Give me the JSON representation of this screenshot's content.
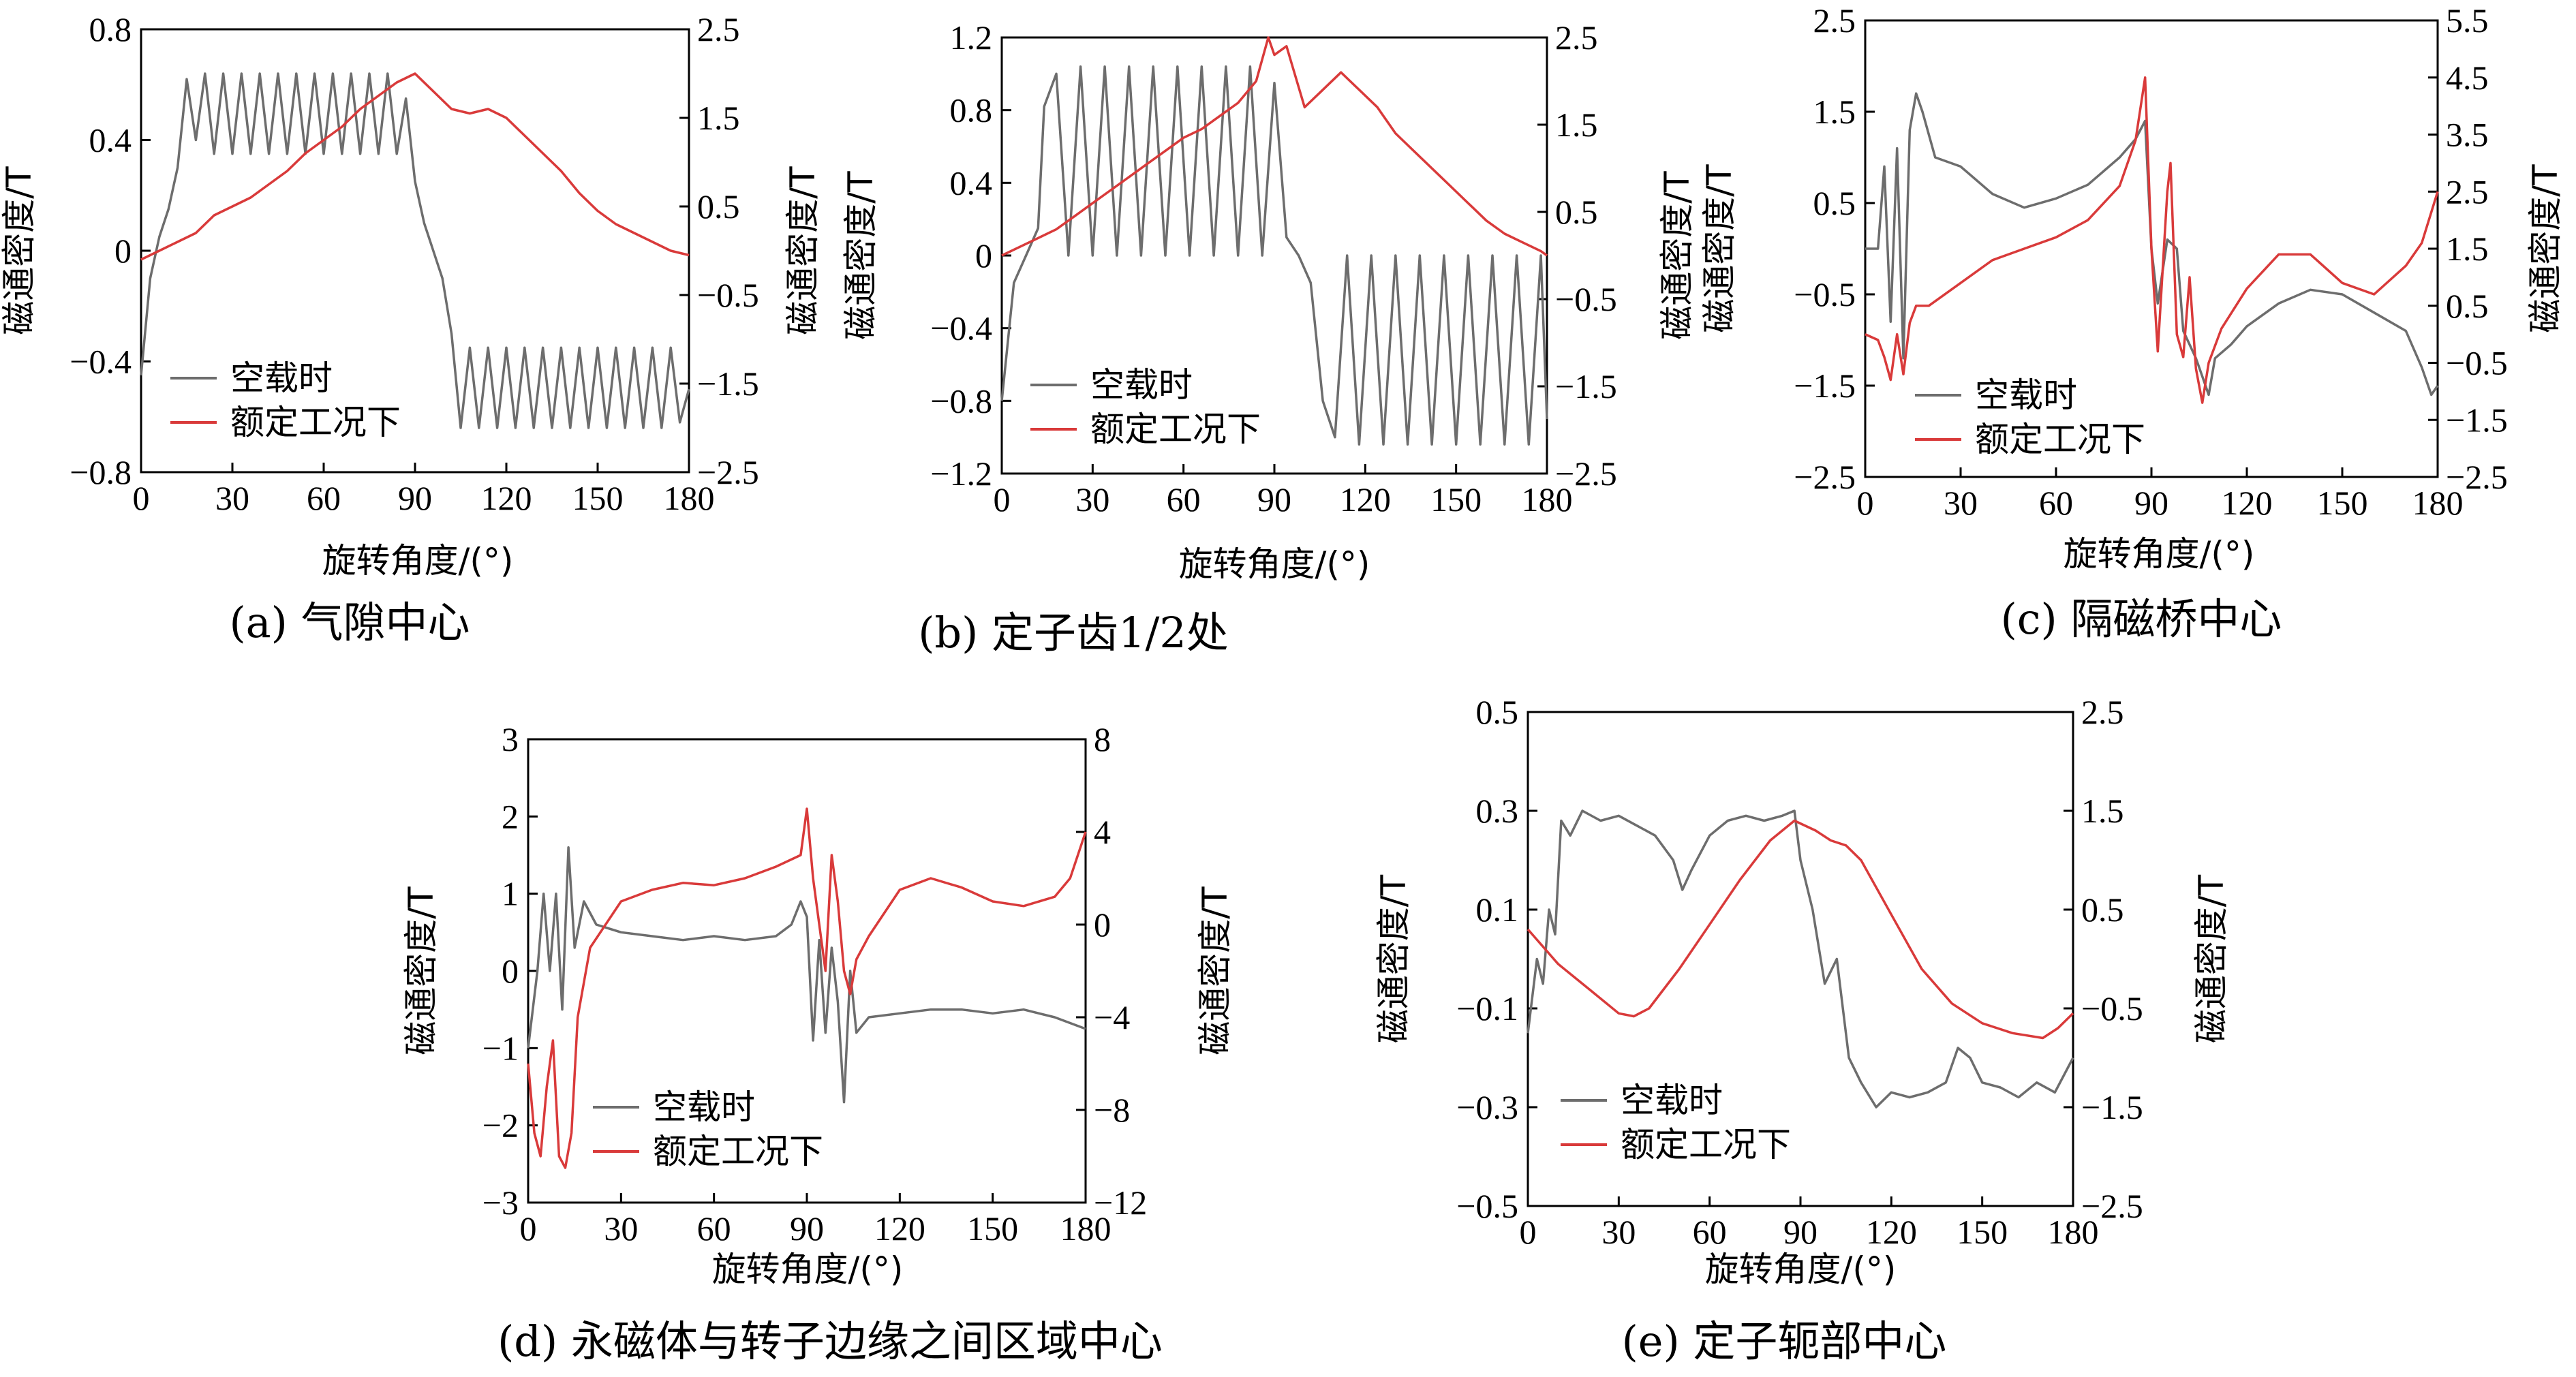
{
  "colors": {
    "no_load": "#6d6d6d",
    "rated": "#d93a3a",
    "axis": "#000000"
  },
  "legend": {
    "no_load": "空载时",
    "rated": "额定工况下"
  },
  "chart_data": [
    {
      "type": "line",
      "caption": "(a)  气隙中心",
      "xlabel": "旋转角度/(°)",
      "ylabel_left": "磁通密度/T",
      "ylabel_right": "磁通密度/T",
      "xlim": [
        0,
        180
      ],
      "xticks": [
        "0",
        "30",
        "60",
        "90",
        "120",
        "150",
        "180"
      ],
      "ylim_left": [
        -0.8,
        0.8
      ],
      "yticks_left": [
        "−0.8",
        "−0.4",
        "0",
        "0.4",
        "0.8"
      ],
      "ylim_right": [
        -2.5,
        2.5
      ],
      "yticks_right": [
        "−2.5",
        "−1.5",
        "−0.5",
        "0.5",
        "1.5",
        "2.5"
      ],
      "series": [
        {
          "name": "空载时",
          "axis": "left",
          "color": "#6d6d6d",
          "x": [
            0,
            3,
            6,
            9,
            12,
            15,
            18,
            21,
            24,
            27,
            30,
            33,
            36,
            39,
            42,
            45,
            48,
            51,
            54,
            57,
            60,
            63,
            66,
            69,
            72,
            75,
            78,
            81,
            84,
            87,
            90,
            93,
            96,
            99,
            102,
            105,
            108,
            111,
            114,
            117,
            120,
            123,
            126,
            129,
            132,
            135,
            138,
            141,
            144,
            147,
            150,
            153,
            156,
            159,
            162,
            165,
            168,
            171,
            174,
            177,
            180
          ],
          "y": [
            -0.45,
            -0.1,
            0.05,
            0.15,
            0.3,
            0.62,
            0.4,
            0.64,
            0.35,
            0.64,
            0.35,
            0.64,
            0.35,
            0.64,
            0.35,
            0.64,
            0.35,
            0.64,
            0.35,
            0.64,
            0.35,
            0.64,
            0.35,
            0.64,
            0.35,
            0.64,
            0.35,
            0.64,
            0.35,
            0.55,
            0.25,
            0.1,
            0.0,
            -0.1,
            -0.3,
            -0.64,
            -0.35,
            -0.64,
            -0.35,
            -0.64,
            -0.35,
            -0.64,
            -0.35,
            -0.64,
            -0.35,
            -0.64,
            -0.35,
            -0.64,
            -0.35,
            -0.64,
            -0.35,
            -0.64,
            -0.35,
            -0.64,
            -0.35,
            -0.64,
            -0.35,
            -0.64,
            -0.35,
            -0.62,
            -0.5
          ]
        },
        {
          "name": "额定工况下",
          "axis": "right",
          "color": "#d93a3a",
          "x": [
            0,
            6,
            12,
            18,
            24,
            30,
            36,
            42,
            48,
            54,
            60,
            66,
            72,
            78,
            84,
            90,
            96,
            102,
            108,
            114,
            120,
            126,
            132,
            138,
            144,
            150,
            156,
            162,
            168,
            174,
            180
          ],
          "y": [
            -0.1,
            0.0,
            0.1,
            0.2,
            0.4,
            0.5,
            0.6,
            0.75,
            0.9,
            1.1,
            1.25,
            1.4,
            1.6,
            1.75,
            1.9,
            2.0,
            1.8,
            1.6,
            1.55,
            1.6,
            1.5,
            1.3,
            1.1,
            0.9,
            0.65,
            0.45,
            0.3,
            0.2,
            0.1,
            0.0,
            -0.05
          ]
        }
      ]
    },
    {
      "type": "line",
      "caption": "(b)  定子齿1/2处",
      "xlabel": "旋转角度/(°)",
      "ylabel_left": "磁通密度/T",
      "ylabel_right": "磁通密度/T",
      "xlim": [
        0,
        180
      ],
      "xticks": [
        "0",
        "30",
        "60",
        "90",
        "120",
        "150",
        "180"
      ],
      "ylim_left": [
        -1.2,
        1.2
      ],
      "yticks_left": [
        "−1.2",
        "−0.8",
        "−0.4",
        "0",
        "0.4",
        "0.8",
        "1.2"
      ],
      "ylim_right": [
        -2.5,
        2.5
      ],
      "yticks_right": [
        "−2.5",
        "−1.5",
        "−0.5",
        "0.5",
        "1.5",
        "2.5"
      ],
      "series": [
        {
          "name": "空载时",
          "axis": "left",
          "color": "#6d6d6d",
          "x": [
            0,
            4,
            8,
            12,
            14,
            18,
            22,
            26,
            30,
            34,
            38,
            42,
            46,
            50,
            54,
            58,
            62,
            66,
            70,
            74,
            78,
            82,
            86,
            90,
            94,
            98,
            102,
            106,
            110,
            114,
            118,
            122,
            126,
            130,
            134,
            138,
            142,
            146,
            150,
            154,
            158,
            162,
            166,
            170,
            174,
            178,
            180
          ],
          "y": [
            -0.8,
            -0.15,
            0.0,
            0.15,
            0.82,
            1.0,
            0.0,
            1.04,
            0.0,
            1.04,
            0.0,
            1.04,
            0.0,
            1.04,
            0.0,
            1.04,
            0.0,
            1.04,
            0.0,
            1.04,
            0.0,
            1.04,
            0.0,
            0.95,
            0.1,
            0.0,
            -0.15,
            -0.8,
            -1.0,
            0.0,
            -1.04,
            0.0,
            -1.04,
            0.0,
            -1.04,
            0.0,
            -1.04,
            0.0,
            -1.04,
            0.0,
            -1.04,
            0.0,
            -1.04,
            0.0,
            -1.04,
            0.0,
            -0.9
          ]
        },
        {
          "name": "额定工况下",
          "axis": "right",
          "color": "#d93a3a",
          "x": [
            0,
            6,
            12,
            18,
            24,
            30,
            36,
            42,
            48,
            54,
            60,
            66,
            72,
            78,
            84,
            88,
            90,
            94,
            100,
            106,
            112,
            118,
            124,
            130,
            136,
            142,
            148,
            154,
            160,
            166,
            172,
            178,
            180
          ],
          "y": [
            0.0,
            0.1,
            0.2,
            0.3,
            0.45,
            0.6,
            0.75,
            0.9,
            1.05,
            1.2,
            1.35,
            1.45,
            1.6,
            1.75,
            2.0,
            2.5,
            2.3,
            2.4,
            1.7,
            1.9,
            2.1,
            1.9,
            1.7,
            1.4,
            1.2,
            1.0,
            0.8,
            0.6,
            0.4,
            0.25,
            0.15,
            0.05,
            0.0
          ]
        }
      ]
    },
    {
      "type": "line",
      "caption": "(c)  隔磁桥中心",
      "xlabel": "旋转角度/(°)",
      "ylabel_left": "磁通密度/T",
      "ylabel_right": "磁通密度/T",
      "xlim": [
        0,
        180
      ],
      "xticks": [
        "0",
        "30",
        "60",
        "90",
        "120",
        "150",
        "180"
      ],
      "ylim_left": [
        -2.5,
        2.5
      ],
      "yticks_left": [
        "−2.5",
        "−1.5",
        "−0.5",
        "0.5",
        "1.5",
        "2.5"
      ],
      "ylim_right": [
        -2.5,
        5.5
      ],
      "yticks_right": [
        "−2.5",
        "−1.5",
        "−0.5",
        "0.5",
        "1.5",
        "2.5",
        "3.5",
        "4.5",
        "5.5"
      ],
      "series": [
        {
          "name": "空载时",
          "axis": "left",
          "color": "#6d6d6d",
          "x": [
            0,
            4,
            6,
            8,
            10,
            12,
            14,
            16,
            18,
            22,
            30,
            40,
            50,
            60,
            70,
            80,
            85,
            88,
            90,
            92,
            95,
            98,
            100,
            104,
            106,
            108,
            110,
            115,
            120,
            130,
            140,
            150,
            160,
            170,
            175,
            178,
            180
          ],
          "y": [
            0.0,
            0.0,
            0.9,
            -0.8,
            1.1,
            -1.2,
            1.3,
            1.7,
            1.5,
            1.0,
            0.9,
            0.6,
            0.45,
            0.55,
            0.7,
            1.0,
            1.2,
            1.4,
            0.0,
            -0.6,
            0.1,
            0.0,
            -0.9,
            -1.2,
            -1.4,
            -1.6,
            -1.2,
            -1.05,
            -0.85,
            -0.6,
            -0.45,
            -0.5,
            -0.7,
            -0.9,
            -1.3,
            -1.6,
            -1.5
          ]
        },
        {
          "name": "额定工况下",
          "axis": "right",
          "color": "#d93a3a",
          "x": [
            0,
            4,
            6,
            8,
            10,
            12,
            14,
            16,
            20,
            30,
            40,
            50,
            60,
            70,
            80,
            85,
            88,
            90,
            92,
            95,
            96,
            98,
            100,
            102,
            104,
            106,
            108,
            112,
            120,
            130,
            140,
            150,
            160,
            170,
            175,
            180
          ],
          "y": [
            0.0,
            -0.1,
            -0.4,
            -0.8,
            0.0,
            -0.7,
            0.2,
            0.5,
            0.5,
            0.9,
            1.3,
            1.5,
            1.7,
            2.0,
            2.6,
            3.4,
            4.5,
            1.5,
            -0.3,
            2.5,
            3.0,
            0.0,
            -0.4,
            1.0,
            -0.6,
            -1.2,
            -0.5,
            0.1,
            0.8,
            1.4,
            1.4,
            0.9,
            0.7,
            1.2,
            1.6,
            2.5
          ]
        }
      ]
    },
    {
      "type": "line",
      "caption": "(d)  永磁体与转子边缘之间区域中心",
      "xlabel": "旋转角度/(°)",
      "ylabel_left": "磁通密度/T",
      "ylabel_right": "磁通密度/T",
      "xlim": [
        0,
        180
      ],
      "xticks": [
        "0",
        "30",
        "60",
        "90",
        "120",
        "150",
        "180"
      ],
      "ylim_left": [
        -3,
        3
      ],
      "yticks_left": [
        "−3",
        "−2",
        "−1",
        "0",
        "1",
        "2",
        "3"
      ],
      "ylim_right": [
        -12,
        8
      ],
      "yticks_right": [
        "−12",
        "−8",
        "−4",
        "0",
        "4",
        "8"
      ],
      "series": [
        {
          "name": "空载时",
          "axis": "left",
          "color": "#6d6d6d",
          "x": [
            0,
            3,
            5,
            7,
            9,
            11,
            13,
            15,
            18,
            22,
            30,
            40,
            50,
            60,
            70,
            80,
            85,
            88,
            90,
            92,
            94,
            96,
            98,
            100,
            102,
            104,
            106,
            110,
            120,
            130,
            140,
            150,
            160,
            170,
            180
          ],
          "y": [
            -1.0,
            0.0,
            1.0,
            0.0,
            1.0,
            -0.5,
            1.6,
            0.3,
            0.9,
            0.6,
            0.5,
            0.45,
            0.4,
            0.45,
            0.4,
            0.45,
            0.6,
            0.9,
            0.7,
            -0.9,
            0.4,
            -0.8,
            0.3,
            -0.4,
            -1.7,
            0.0,
            -0.8,
            -0.6,
            -0.55,
            -0.5,
            -0.5,
            -0.55,
            -0.5,
            -0.6,
            -0.75
          ]
        },
        {
          "name": "额定工况下",
          "axis": "right",
          "color": "#d93a3a",
          "x": [
            0,
            2,
            4,
            6,
            8,
            10,
            12,
            14,
            16,
            20,
            30,
            40,
            50,
            60,
            70,
            80,
            88,
            90,
            92,
            94,
            96,
            98,
            100,
            102,
            104,
            106,
            110,
            120,
            130,
            140,
            150,
            160,
            170,
            175,
            180
          ],
          "y": [
            -6.0,
            -9.0,
            -10.0,
            -7.0,
            -5.0,
            -10.0,
            -10.5,
            -9.0,
            -4.0,
            -1.0,
            1.0,
            1.5,
            1.8,
            1.7,
            2.0,
            2.5,
            3.0,
            5.0,
            2.0,
            0.0,
            -2.0,
            3.0,
            1.0,
            -2.0,
            -3.0,
            -1.5,
            -0.5,
            1.5,
            2.0,
            1.6,
            1.0,
            0.8,
            1.2,
            2.0,
            4.0
          ]
        }
      ]
    },
    {
      "type": "line",
      "caption": "(e)  定子轭部中心",
      "xlabel": "旋转角度/(°)",
      "ylabel_left": "磁通密度/T",
      "ylabel_right": "磁通密度/T",
      "xlim": [
        0,
        180
      ],
      "xticks": [
        "0",
        "30",
        "60",
        "90",
        "120",
        "150",
        "180"
      ],
      "ylim_left": [
        -0.5,
        0.5
      ],
      "yticks_left": [
        "−0.5",
        "−0.3",
        "−0.1",
        "0.1",
        "0.3",
        "0.5"
      ],
      "ylim_right": [
        -2.5,
        2.5
      ],
      "yticks_right": [
        "−2.5",
        "−1.5",
        "−0.5",
        "0.5",
        "1.5",
        "2.5"
      ],
      "series": [
        {
          "name": "空载时",
          "axis": "left",
          "color": "#6d6d6d",
          "x": [
            0,
            3,
            5,
            7,
            9,
            11,
            14,
            18,
            24,
            30,
            36,
            42,
            48,
            51,
            54,
            60,
            66,
            72,
            78,
            84,
            88,
            90,
            94,
            98,
            102,
            106,
            110,
            115,
            120,
            126,
            132,
            138,
            142,
            146,
            150,
            156,
            162,
            168,
            174,
            180
          ],
          "y": [
            -0.15,
            0.0,
            -0.05,
            0.1,
            0.05,
            0.28,
            0.25,
            0.3,
            0.28,
            0.29,
            0.27,
            0.25,
            0.2,
            0.14,
            0.18,
            0.25,
            0.28,
            0.29,
            0.28,
            0.29,
            0.3,
            0.2,
            0.1,
            -0.05,
            0.0,
            -0.2,
            -0.25,
            -0.3,
            -0.27,
            -0.28,
            -0.27,
            -0.25,
            -0.18,
            -0.2,
            -0.25,
            -0.26,
            -0.28,
            -0.25,
            -0.27,
            -0.2
          ]
        },
        {
          "name": "额定工况下",
          "axis": "right",
          "color": "#d93a3a",
          "x": [
            0,
            10,
            20,
            30,
            35,
            40,
            50,
            60,
            70,
            80,
            88,
            95,
            100,
            105,
            110,
            120,
            130,
            140,
            150,
            160,
            170,
            175,
            180
          ],
          "y": [
            0.3,
            -0.05,
            -0.3,
            -0.55,
            -0.58,
            -0.5,
            -0.1,
            0.35,
            0.8,
            1.2,
            1.4,
            1.3,
            1.2,
            1.15,
            1.0,
            0.45,
            -0.1,
            -0.45,
            -0.65,
            -0.75,
            -0.8,
            -0.7,
            -0.55
          ]
        }
      ]
    }
  ]
}
